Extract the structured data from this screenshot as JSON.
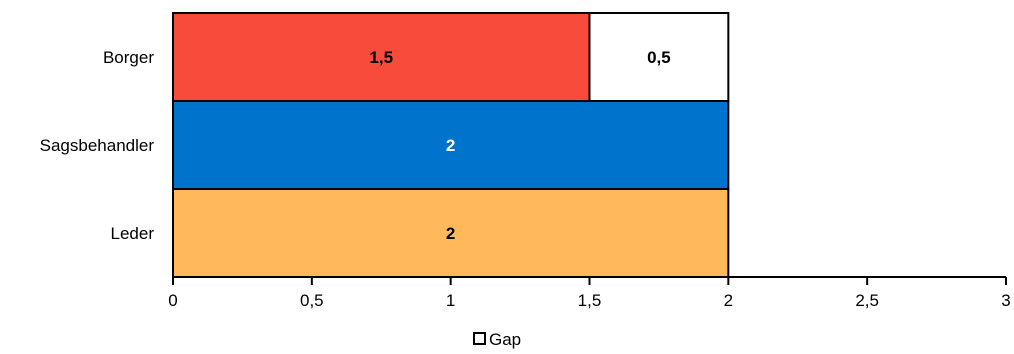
{
  "chart_data": {
    "type": "bar",
    "orientation": "horizontal",
    "stacked": true,
    "categories": [
      "Borger",
      "Sagsbehandler",
      "Leder"
    ],
    "series": [
      {
        "values": [
          1.5,
          2,
          2
        ],
        "value_labels": [
          "1,5",
          "2",
          "2"
        ],
        "colors": [
          "#f84b3c",
          "#0073cd",
          "#ffb95a"
        ],
        "label_colors": [
          "#000000",
          "#ffffff",
          "#000000"
        ]
      },
      {
        "name": "Gap",
        "values": [
          0.5,
          0,
          0
        ],
        "value_labels": [
          "0,5",
          "",
          ""
        ],
        "colors": [
          "#ffffff",
          "#ffffff",
          "#ffffff"
        ],
        "label_colors": [
          "#000000",
          "#000000",
          "#000000"
        ]
      }
    ],
    "xlim": [
      0,
      3
    ],
    "x_ticks": [
      0,
      0.5,
      1,
      1.5,
      2,
      2.5,
      3
    ],
    "x_tick_labels": [
      "0",
      "0,5",
      "1",
      "1,5",
      "2",
      "2,5",
      "3"
    ],
    "title": "",
    "xlabel": "",
    "ylabel": "",
    "grid": false,
    "legend": {
      "position": "bottom",
      "entries": [
        "Gap"
      ]
    }
  }
}
